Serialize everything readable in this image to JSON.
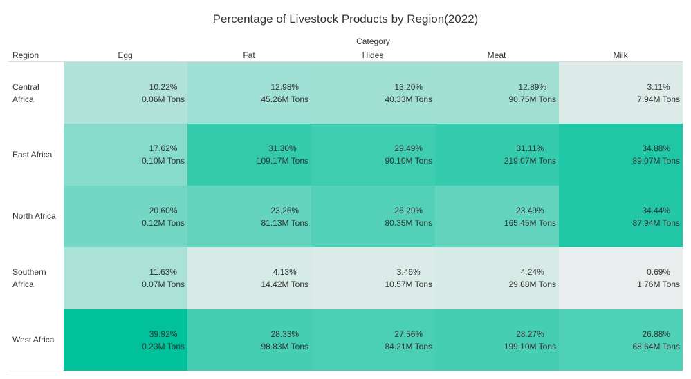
{
  "chart_data": {
    "type": "heatmap",
    "title": "Percentage of Livestock Products by Region(2022)",
    "column_group_label": "Category",
    "row_label": "Region",
    "categories": [
      "Egg",
      "Fat",
      "Hides",
      "Meat",
      "Milk"
    ],
    "regions": [
      "Central Africa",
      "East Africa",
      "North Africa",
      "Southern Africa",
      "West Africa"
    ],
    "region_lines": [
      [
        "Central",
        "Africa"
      ],
      [
        "East Africa"
      ],
      [
        "North Africa"
      ],
      [
        "Southern",
        "Africa"
      ],
      [
        "West Africa"
      ]
    ],
    "percent": [
      [
        10.22,
        12.98,
        13.2,
        12.89,
        3.11
      ],
      [
        17.62,
        31.3,
        29.49,
        31.11,
        34.88
      ],
      [
        20.6,
        23.26,
        26.29,
        23.49,
        34.44
      ],
      [
        11.63,
        4.13,
        3.46,
        4.24,
        0.69
      ],
      [
        39.92,
        28.33,
        27.56,
        28.27,
        26.88
      ]
    ],
    "percent_labels": [
      [
        "10.22%",
        "12.98%",
        "13.20%",
        "12.89%",
        "3.11%"
      ],
      [
        "17.62%",
        "31.30%",
        "29.49%",
        "31.11%",
        "34.88%"
      ],
      [
        "20.60%",
        "23.26%",
        "26.29%",
        "23.49%",
        "34.44%"
      ],
      [
        "11.63%",
        "4.13%",
        "3.46%",
        "4.24%",
        "0.69%"
      ],
      [
        "39.92%",
        "28.33%",
        "27.56%",
        "28.27%",
        "26.88%"
      ]
    ],
    "tons_labels": [
      [
        "0.06M Tons",
        "45.26M Tons",
        "40.33M Tons",
        "90.75M Tons",
        "7.94M Tons"
      ],
      [
        "0.10M Tons",
        "109.17M Tons",
        "90.10M Tons",
        "219.07M Tons",
        "89.07M Tons"
      ],
      [
        "0.12M Tons",
        "81.13M Tons",
        "80.35M Tons",
        "165.45M Tons",
        "87.94M Tons"
      ],
      [
        "0.07M Tons",
        "14.42M Tons",
        "10.57M Tons",
        "29.88M Tons",
        "1.76M Tons"
      ],
      [
        "0.23M Tons",
        "98.83M Tons",
        "84.21M Tons",
        "199.10M Tons",
        "68.64M Tons"
      ]
    ],
    "color_low": "#efefef",
    "color_high": "#00c19b",
    "color_range": [
      0,
      40
    ]
  }
}
